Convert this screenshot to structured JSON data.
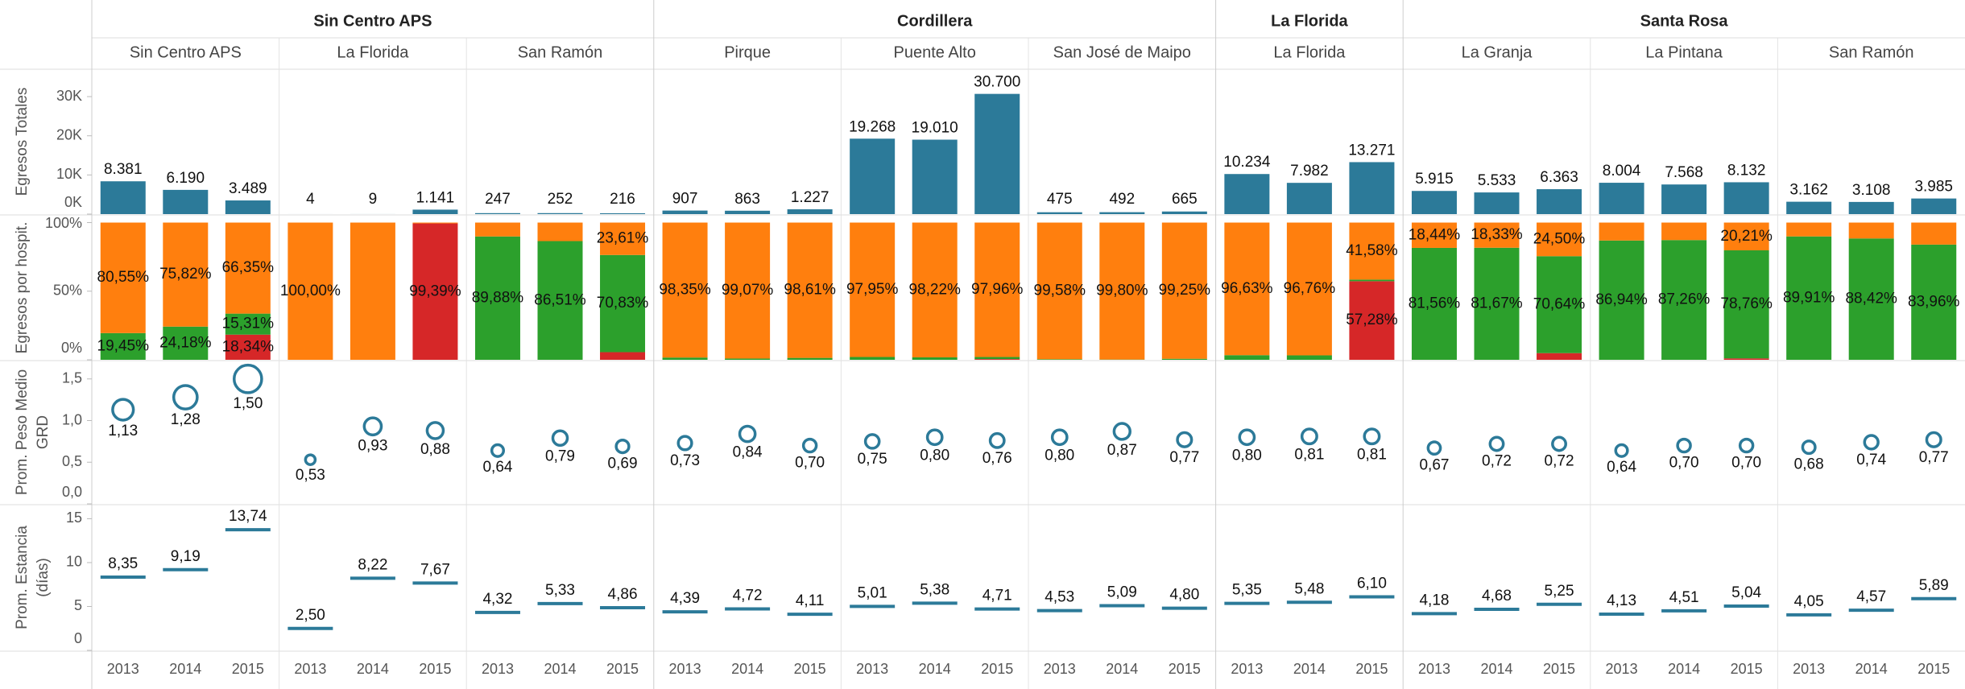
{
  "chart_data": {
    "type": "trellis",
    "groups": [
      {
        "name": "Sin Centro APS",
        "columns": [
          "Sin Centro APS",
          "La Florida",
          "San Ramón"
        ]
      },
      {
        "name": "Cordillera",
        "columns": [
          "Pirque",
          "Puente Alto",
          "San José de Maipo"
        ]
      },
      {
        "name": "La Florida",
        "columns": [
          "La Florida"
        ]
      },
      {
        "name": "Santa Rosa",
        "columns": [
          "La Granja",
          "La Pintana",
          "San Ramón"
        ]
      }
    ],
    "years": [
      "2013",
      "2014",
      "2015"
    ],
    "panels": [
      {
        "type": "bar",
        "axis_label": [
          "Egresos Totales"
        ],
        "color": "#2c7a99",
        "ylim": [
          0,
          37000
        ],
        "yticks": [
          {
            "value": 0,
            "label": "0K"
          },
          {
            "value": 10000,
            "label": "10K"
          },
          {
            "value": 20000,
            "label": "20K"
          },
          {
            "value": 30000,
            "label": "30K"
          }
        ],
        "values": [
          8381,
          6190,
          3489,
          4,
          9,
          1141,
          247,
          252,
          216,
          907,
          863,
          1227,
          19268,
          19010,
          30700,
          475,
          492,
          665,
          10234,
          7982,
          13271,
          5915,
          5533,
          6363,
          8004,
          7568,
          8132,
          3162,
          3108,
          3985
        ],
        "value_labels": [
          "8.381",
          "6.190",
          "3.489",
          "4",
          "9",
          "1.141",
          "247",
          "252",
          "216",
          "907",
          "863",
          "1.227",
          "19.268",
          "19.010",
          "30.700",
          "475",
          "492",
          "665",
          "10.234",
          "7.982",
          "13.271",
          "5.915",
          "5.533",
          "6.363",
          "8.004",
          "7.568",
          "8.132",
          "3.162",
          "3.108",
          "3.985"
        ]
      },
      {
        "type": "stacked",
        "axis_label": [
          "Egresos por hospit."
        ],
        "ylim": [
          0,
          105
        ],
        "yticks": [
          {
            "value": 0,
            "label": "0%"
          },
          {
            "value": 50,
            "label": "50%"
          },
          {
            "value": 100,
            "label": "100%"
          }
        ],
        "series": [
          {
            "color": "#d62728",
            "values": [
              0,
              0,
              18.34,
              0,
              0,
              99.39,
              0,
              0,
              5.56,
              0,
              0,
              0,
              0,
              0,
              0.54,
              0,
              0,
              0,
              0,
              0,
              57.28,
              0,
              0,
              4.86,
              0,
              0,
              1.03,
              0,
              0,
              0
            ],
            "value_labels": [
              null,
              null,
              "18,34%",
              null,
              null,
              "99,39%",
              null,
              null,
              null,
              null,
              null,
              null,
              null,
              null,
              null,
              null,
              null,
              null,
              null,
              null,
              "57,28%",
              null,
              null,
              null,
              null,
              null,
              null,
              null,
              null,
              null
            ]
          },
          {
            "color": "#2ca02c",
            "values": [
              19.45,
              24.18,
              15.31,
              0,
              0,
              0,
              89.88,
              86.51,
              70.83,
              1.65,
              0.93,
              1.39,
              2.05,
              1.78,
              1.5,
              0.42,
              0.2,
              0.75,
              3.37,
              3.24,
              1.14,
              81.56,
              81.67,
              70.64,
              86.94,
              87.26,
              78.76,
              89.91,
              88.42,
              83.96
            ],
            "value_labels": [
              "19,45%",
              "24,18%",
              "15,31%",
              null,
              null,
              null,
              "89,88%",
              "86,51%",
              "70,83%",
              null,
              null,
              null,
              null,
              null,
              null,
              null,
              null,
              null,
              null,
              null,
              null,
              "81,56%",
              "81,67%",
              "70,64%",
              "86,94%",
              "87,26%",
              "78,76%",
              "89,91%",
              "88,42%",
              "83,96%"
            ]
          },
          {
            "color": "#ff7f0e",
            "values": [
              80.55,
              75.82,
              66.35,
              100,
              100,
              0.61,
              10.12,
              13.49,
              23.61,
              98.35,
              99.07,
              98.61,
              97.95,
              98.22,
              97.96,
              99.58,
              99.8,
              99.25,
              96.63,
              96.76,
              41.58,
              18.44,
              18.33,
              24.5,
              13.06,
              12.74,
              20.21,
              10.09,
              11.58,
              16.04
            ],
            "value_labels": [
              "80,55%",
              "75,82%",
              "66,35%",
              "100,00%",
              null,
              null,
              null,
              null,
              "23,61%",
              "98,35%",
              "99,07%",
              "98,61%",
              "97,95%",
              "98,22%",
              "97,96%",
              "99,58%",
              "99,80%",
              "99,25%",
              "96,63%",
              "96,76%",
              "41,58%",
              "18,44%",
              "18,33%",
              "24,50%",
              null,
              null,
              "20,21%",
              null,
              null,
              null
            ]
          }
        ]
      },
      {
        "type": "bubble",
        "axis_label": [
          "Prom. Peso Medio",
          "GRD"
        ],
        "color": "#2c7a99",
        "ylim": [
          0,
          1.72
        ],
        "yticks": [
          {
            "value": 0,
            "label": "0,0"
          },
          {
            "value": 0.5,
            "label": "0,5"
          },
          {
            "value": 1,
            "label": "1,0"
          },
          {
            "value": 1.5,
            "label": "1,5"
          }
        ],
        "values": [
          1.13,
          1.28,
          1.5,
          0.53,
          0.93,
          0.88,
          0.64,
          0.79,
          0.69,
          0.73,
          0.84,
          0.7,
          0.75,
          0.8,
          0.76,
          0.8,
          0.87,
          0.77,
          0.8,
          0.81,
          0.81,
          0.67,
          0.72,
          0.72,
          0.64,
          0.7,
          0.7,
          0.68,
          0.74,
          0.77
        ],
        "value_labels": [
          "1,13",
          "1,28",
          "1,50",
          "0,53",
          "0,93",
          "0,88",
          "0,64",
          "0,79",
          "0,69",
          "0,73",
          "0,84",
          "0,70",
          "0,75",
          "0,80",
          "0,76",
          "0,80",
          "0,87",
          "0,77",
          "0,80",
          "0,81",
          "0,81",
          "0,67",
          "0,72",
          "0,72",
          "0,64",
          "0,70",
          "0,70",
          "0,68",
          "0,74",
          "0,77"
        ]
      },
      {
        "type": "dash",
        "axis_label": [
          "Prom. Estancia",
          "(días)"
        ],
        "color": "#2c7a99",
        "ylim": [
          0,
          16.6
        ],
        "yticks": [
          0,
          5,
          10,
          15
        ],
        "values": [
          8.35,
          9.19,
          13.74,
          2.5,
          8.22,
          7.67,
          4.32,
          5.33,
          4.86,
          4.39,
          4.72,
          4.11,
          5.01,
          5.38,
          4.71,
          4.53,
          5.09,
          4.8,
          5.35,
          5.48,
          6.1,
          4.18,
          4.68,
          5.25,
          4.13,
          4.51,
          5.04,
          4.05,
          4.57,
          5.89
        ],
        "value_labels": [
          "8,35",
          "9,19",
          "13,74",
          "2,50",
          "8,22",
          "7,67",
          "4,32",
          "5,33",
          "4,86",
          "4,39",
          "4,72",
          "4,11",
          "5,01",
          "5,38",
          "4,71",
          "4,53",
          "5,09",
          "4,80",
          "5,35",
          "5,48",
          "6,10",
          "4,18",
          "4,68",
          "5,25",
          "4,13",
          "4,51",
          "5,04",
          "4,05",
          "4,57",
          "5,89"
        ]
      }
    ]
  }
}
